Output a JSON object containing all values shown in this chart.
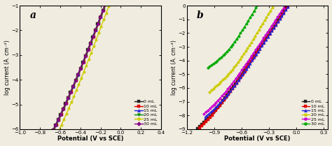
{
  "panel_a": {
    "label": "a",
    "xlim": [
      -1.0,
      0.4
    ],
    "ylim": [
      -6.0,
      -1.0
    ],
    "xlabel": "Potential (V vs SCE)",
    "ylabel": "log current (A. cm⁻²)",
    "xticks": [
      -1.0,
      -0.8,
      -0.6,
      -0.4,
      -0.2,
      0.0,
      0.2,
      0.4
    ],
    "yticks": [
      -6,
      -5,
      -4,
      -3,
      -2,
      -1
    ],
    "series": [
      {
        "label": "0 mL",
        "color": "#222222",
        "marker": "s",
        "ecorr": -0.505,
        "icorr": -4.85,
        "ba": 0.13,
        "bc": 0.09,
        "xmin": -0.83,
        "xmax": 0.4
      },
      {
        "label": "10 mL",
        "color": "#dd0000",
        "marker": "s",
        "ecorr": -0.5,
        "icorr": -4.9,
        "ba": 0.13,
        "bc": 0.09,
        "xmin": -0.83,
        "xmax": 0.4
      },
      {
        "label": "15 mL",
        "color": "#2222dd",
        "marker": "^",
        "ecorr": -0.51,
        "icorr": -4.95,
        "ba": 0.13,
        "bc": 0.09,
        "xmin": -0.83,
        "xmax": 0.4
      },
      {
        "label": "20 mL",
        "color": "#008800",
        "marker": "v",
        "ecorr": -0.515,
        "icorr": -5.0,
        "ba": 0.13,
        "bc": 0.09,
        "xmin": -0.83,
        "xmax": 0.4
      },
      {
        "label": "25 mL",
        "color": "#cccc00",
        "marker": "o",
        "ecorr": -0.52,
        "icorr": -5.5,
        "ba": 0.13,
        "bc": 0.09,
        "xmin": -0.83,
        "xmax": 0.4
      },
      {
        "label": "30 mL",
        "color": "#880088",
        "marker": "D",
        "ecorr": -0.51,
        "icorr": -4.92,
        "ba": 0.13,
        "bc": 0.09,
        "xmin": -0.83,
        "xmax": 0.4
      }
    ]
  },
  "panel_b": {
    "label": "b",
    "xlim": [
      -1.2,
      0.35
    ],
    "ylim": [
      -9.0,
      0.0
    ],
    "xlabel": "Potential (V vs SCE)",
    "ylabel": "log current (A. cm⁻²)",
    "xticks": [
      -1.2,
      -0.9,
      -0.6,
      -0.3,
      0.0,
      0.3
    ],
    "yticks": [
      -9,
      -8,
      -7,
      -6,
      -5,
      -4,
      -3,
      -2,
      -1,
      0
    ],
    "series": [
      {
        "label": "0 mL",
        "color": "#222222",
        "marker": "s",
        "ecorr": -0.9,
        "icorr": -8.0,
        "ba": 0.18,
        "bc": 0.1,
        "xmin": -1.08,
        "xmax": 0.35
      },
      {
        "label": "10 mL",
        "color": "#dd0000",
        "marker": "s",
        "ecorr": -0.87,
        "icorr": -7.85,
        "ba": 0.17,
        "bc": 0.1,
        "xmin": -1.06,
        "xmax": 0.35
      },
      {
        "label": "15 mL",
        "color": "#2222dd",
        "marker": "^",
        "ecorr": -0.78,
        "icorr": -7.0,
        "ba": 0.19,
        "bc": 0.1,
        "xmin": -1.0,
        "xmax": 0.35
      },
      {
        "label": "20 mL",
        "color": "#cccc00",
        "marker": "o",
        "ecorr": -0.68,
        "icorr": -4.8,
        "ba": 0.18,
        "bc": 0.09,
        "xmin": -0.95,
        "xmax": 0.35
      },
      {
        "label": "25 mL",
        "color": "#cc00cc",
        "marker": "o",
        "ecorr": -0.79,
        "icorr": -6.7,
        "ba": 0.18,
        "bc": 0.1,
        "xmin": -1.01,
        "xmax": 0.35
      },
      {
        "label": "30 mL",
        "color": "#00aa00",
        "marker": "o",
        "ecorr": -0.74,
        "icorr": -3.5,
        "ba": 0.22,
        "bc": 0.09,
        "xmin": -0.97,
        "xmax": 0.35
      }
    ]
  },
  "bg_color": "#f0ece0",
  "marker_size": 2.5,
  "line_width": 1.0,
  "marker_interval_a": 10,
  "marker_interval_b": 8
}
